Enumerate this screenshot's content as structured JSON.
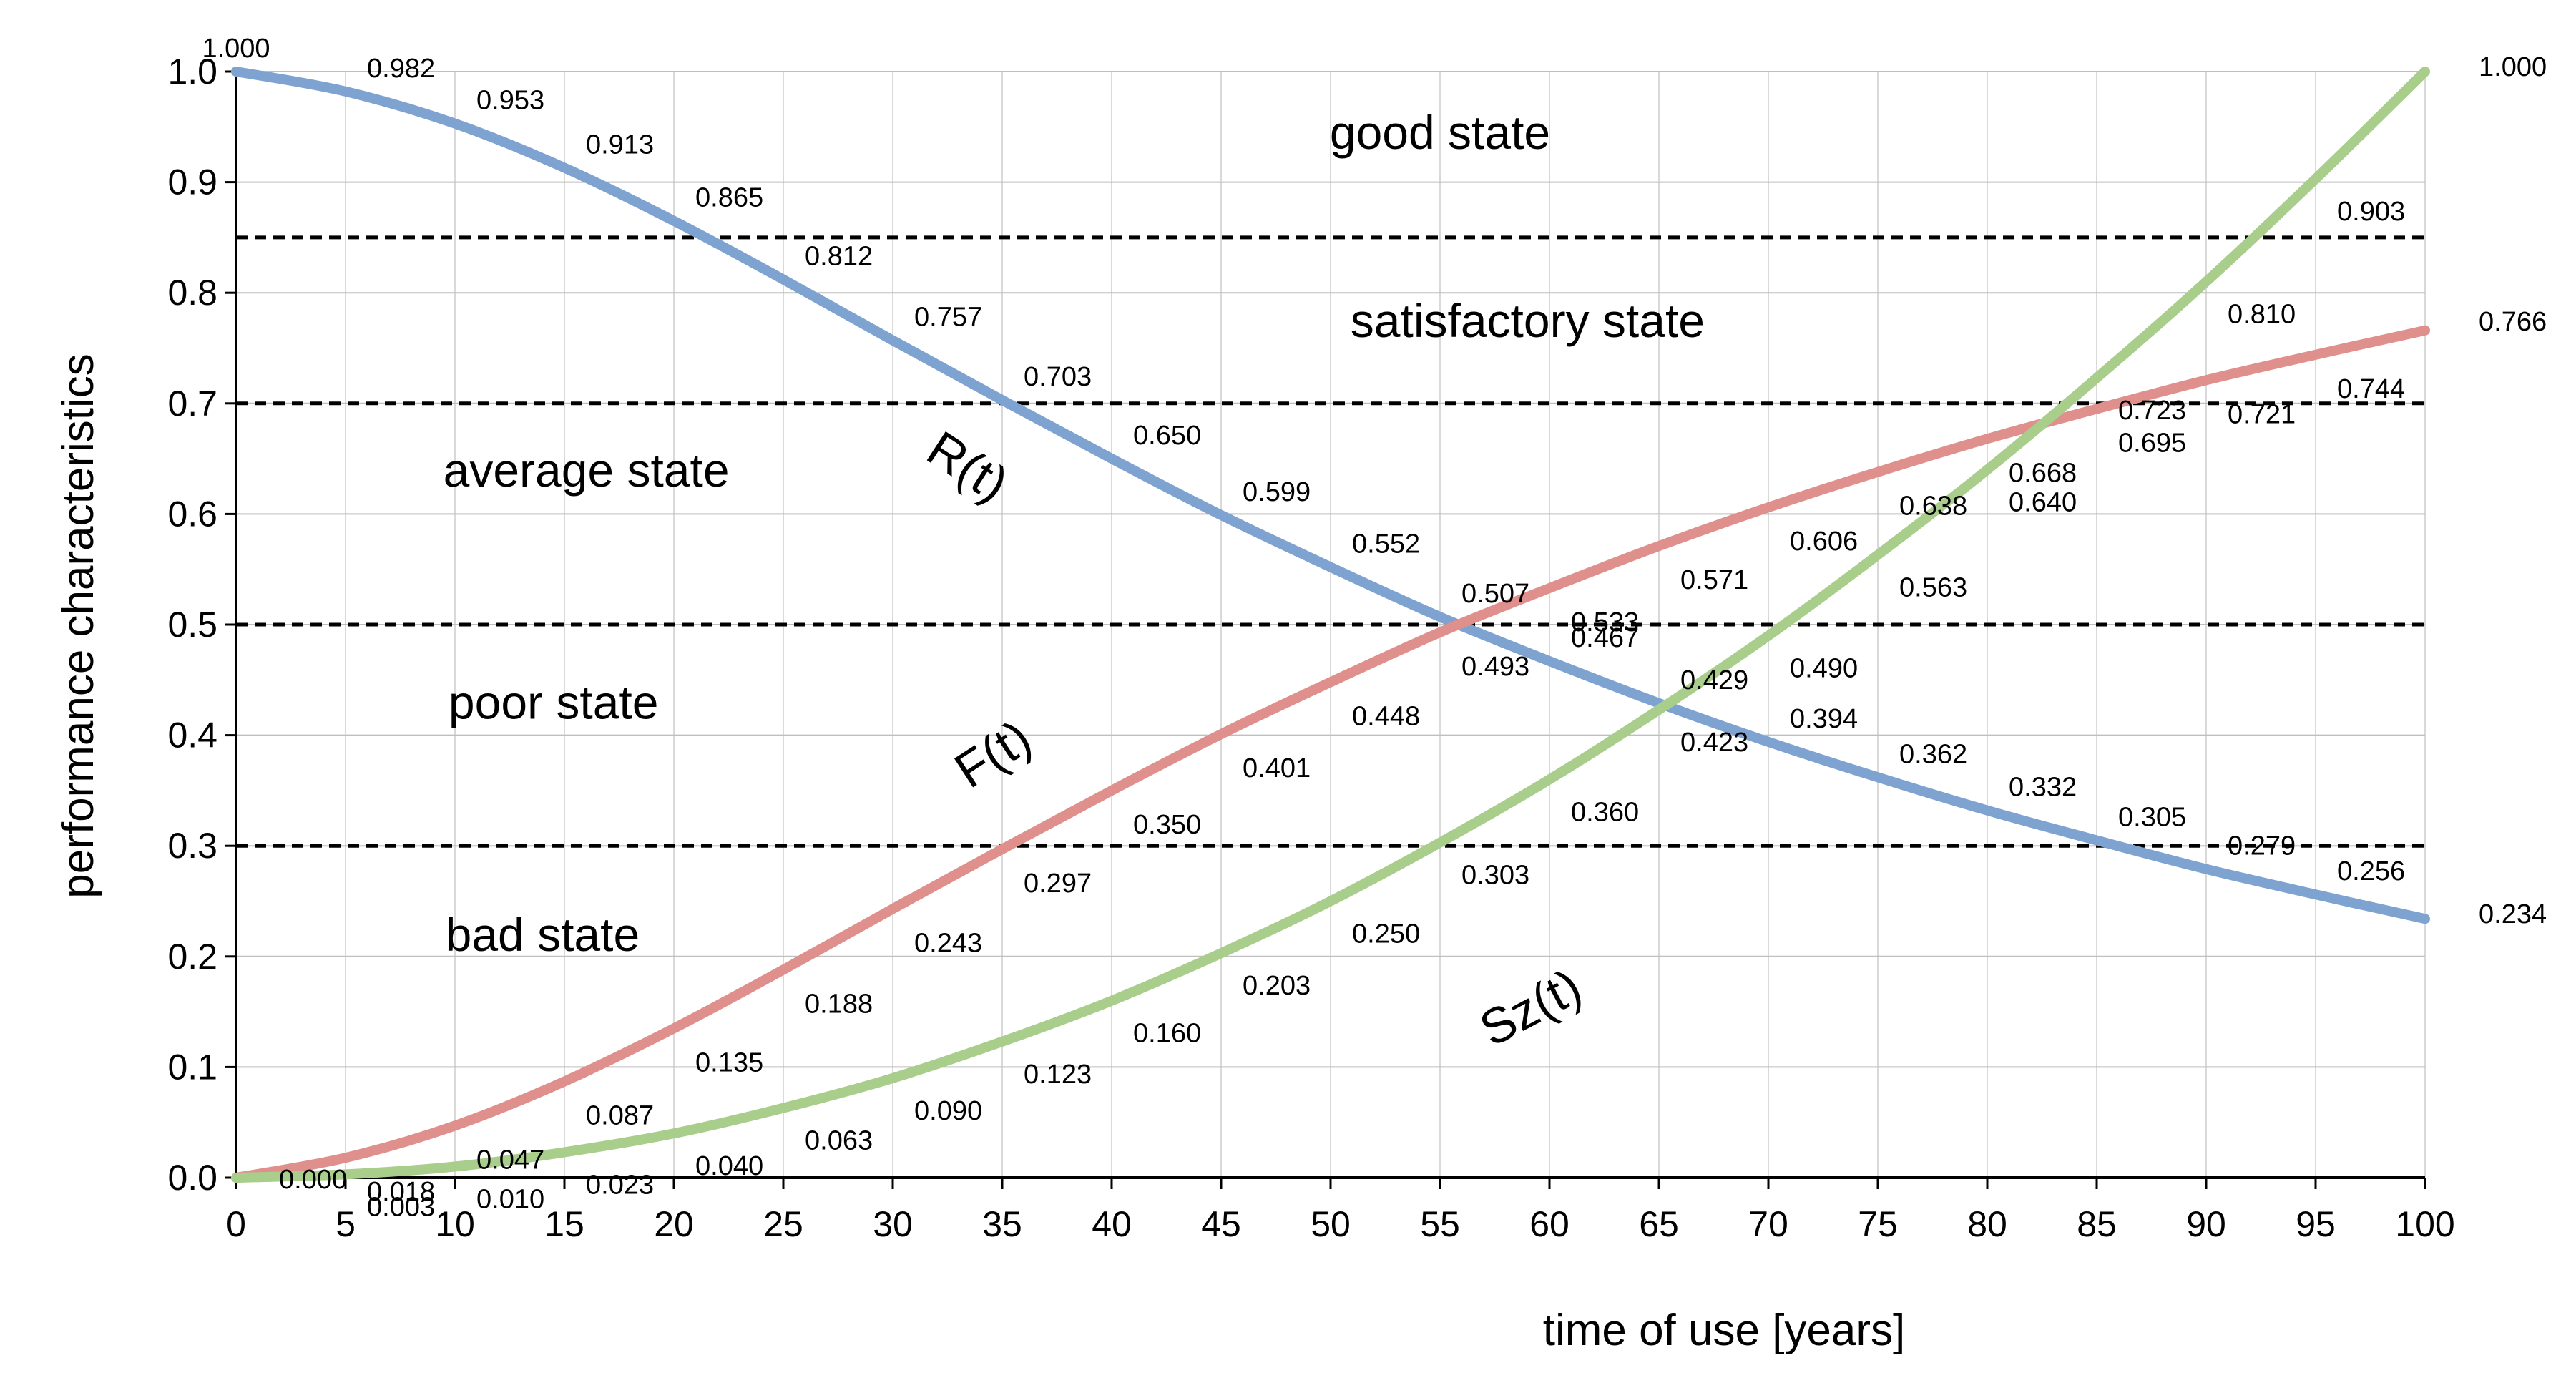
{
  "chart_data": {
    "type": "line",
    "title": "",
    "xlabel": "time of use [years]",
    "ylabel": "performance characteristics",
    "xlim": [
      0,
      100
    ],
    "ylim": [
      0,
      1
    ],
    "x": [
      0,
      5,
      10,
      15,
      20,
      25,
      30,
      35,
      40,
      45,
      50,
      55,
      60,
      65,
      70,
      75,
      80,
      85,
      90,
      95,
      100
    ],
    "x_tick_labels": [
      "0",
      "5",
      "10",
      "15",
      "20",
      "25",
      "30",
      "35",
      "40",
      "45",
      "50",
      "55",
      "60",
      "65",
      "70",
      "75",
      "80",
      "85",
      "90",
      "95",
      "100"
    ],
    "y_ticks": [
      0,
      0.1,
      0.2,
      0.3,
      0.4,
      0.5,
      0.6,
      0.7,
      0.8,
      0.9,
      1.0
    ],
    "y_tick_labels": [
      "0.0",
      "0.1",
      "0.2",
      "0.3",
      "0.4",
      "0.5",
      "0.6",
      "0.7",
      "0.8",
      "0.9",
      "1.0"
    ],
    "grid": true,
    "series": [
      {
        "name": "R(t)",
        "color": "#7fa3d1",
        "values": [
          1.0,
          0.982,
          0.953,
          0.913,
          0.865,
          0.812,
          0.757,
          0.703,
          0.65,
          0.599,
          0.552,
          0.507,
          0.467,
          0.429,
          0.394,
          0.362,
          0.332,
          0.305,
          0.279,
          0.256,
          0.234
        ],
        "labels": [
          "1.000",
          "0.982",
          "0.953",
          "0.913",
          "0.865",
          "0.812",
          "0.757",
          "0.703",
          "0.650",
          "0.599",
          "0.552",
          "0.507",
          "0.467",
          "0.429",
          "0.394",
          "0.362",
          "0.332",
          "0.305",
          "0.279",
          "0.256",
          "0.234"
        ]
      },
      {
        "name": "F(t)",
        "color": "#e0908c",
        "values": [
          0.0,
          0.018,
          0.047,
          0.087,
          0.135,
          0.188,
          0.243,
          0.297,
          0.35,
          0.401,
          0.448,
          0.493,
          0.533,
          0.571,
          0.606,
          0.638,
          0.668,
          0.695,
          0.721,
          0.744,
          0.766
        ],
        "labels": [
          "0.000",
          "0.018",
          "0.047",
          "0.087",
          "0.135",
          "0.188",
          "0.243",
          "0.297",
          "0.350",
          "0.401",
          "0.448",
          "0.493",
          "0.533",
          "0.571",
          "0.606",
          "0.638",
          "0.668",
          "0.695",
          "0.721",
          "0.744",
          "0.766"
        ]
      },
      {
        "name": "Sz(t)",
        "color": "#a9cd8b",
        "values": [
          0.0,
          0.003,
          0.01,
          0.023,
          0.04,
          0.063,
          0.09,
          0.123,
          0.16,
          0.203,
          0.25,
          0.303,
          0.36,
          0.423,
          0.49,
          0.563,
          0.64,
          0.723,
          0.81,
          0.903,
          1.0
        ],
        "labels": [
          "",
          "0.003",
          "0.010",
          "0.023",
          "0.040",
          "0.063",
          "0.090",
          "0.123",
          "0.160",
          "0.203",
          "0.250",
          "0.303",
          "0.360",
          "0.423",
          "0.490",
          "0.563",
          "0.640",
          "0.723",
          "0.810",
          "0.903",
          "1.000"
        ]
      }
    ],
    "thresholds": [
      0.85,
      0.7,
      0.5,
      0.3
    ],
    "state_labels": [
      {
        "text": "good state",
        "x": 55,
        "y": 0.93
      },
      {
        "text": "satisfactory state",
        "x": 59,
        "y": 0.76
      },
      {
        "text": "average state",
        "x": 16,
        "y": 0.625
      },
      {
        "text": "poor state",
        "x": 14.5,
        "y": 0.415
      },
      {
        "text": "bad state",
        "x": 14,
        "y": 0.205
      }
    ],
    "curve_labels": [
      {
        "text": "R(t)",
        "x": 33,
        "y": 0.63,
        "rotate": 33
      },
      {
        "text": "F(t)",
        "x": 35,
        "y": 0.37,
        "rotate": -33
      },
      {
        "text": "Sz(t)",
        "x": 59.5,
        "y": 0.14,
        "rotate": -28
      }
    ]
  }
}
